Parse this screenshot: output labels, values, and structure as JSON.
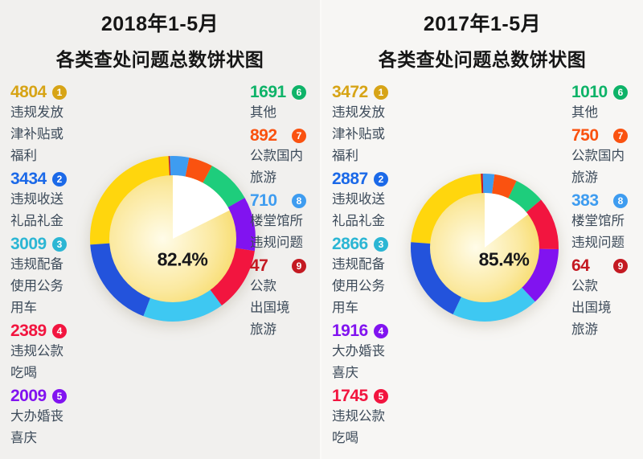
{
  "colors": {
    "panel_left_bg": "#f1f0ee",
    "panel_right_bg": "#f7f6f4",
    "title_text": "#161616",
    "legend_label_text": "#3c4a59",
    "center_label_text": "#17171a",
    "wedge": "#ffffff",
    "pie_gradient": {
      "center": "#fffce9",
      "mid": "#fbe9a0",
      "edge": "#f5d44e"
    }
  },
  "chart_data": [
    {
      "type": "donut",
      "title_line1": "2018年1-5月",
      "title_line2": "各类查处问题总数饼状图",
      "center_label": "82.4%",
      "direction": "counterclockwise-from-top",
      "legend_position": "flanking-left-and-right",
      "entries": [
        {
          "rank": 1,
          "value": 4804,
          "label": "违规发放津补贴或福利",
          "label_lines": [
            "违规发放",
            "津补贴或",
            "福利"
          ],
          "slice_color": "#ffd60d",
          "text_color": "#d7a416"
        },
        {
          "rank": 2,
          "value": 3434,
          "label": "违规收送礼品礼金",
          "label_lines": [
            "违规收送",
            "礼品礼金"
          ],
          "slice_color": "#2353dc",
          "text_color": "#1b69e8"
        },
        {
          "rank": 3,
          "value": 3009,
          "label": "违规配备使用公务用车",
          "label_lines": [
            "违规配备",
            "使用公务",
            "用车"
          ],
          "slice_color": "#3ec8f2",
          "text_color": "#2cb6d4"
        },
        {
          "rank": 4,
          "value": 2389,
          "label": "违规公款吃喝",
          "label_lines": [
            "违规公款",
            "吃喝"
          ],
          "slice_color": "#f2153f",
          "text_color": "#f2153f"
        },
        {
          "rank": 5,
          "value": 2009,
          "label": "大办婚丧喜庆",
          "label_lines": [
            "大办婚丧",
            "喜庆"
          ],
          "slice_color": "#8113f0",
          "text_color": "#8113f0"
        },
        {
          "rank": 6,
          "value": 1691,
          "label": "其他",
          "label_lines": [
            "其他"
          ],
          "slice_color": "#1ecd7c",
          "text_color": "#0eb368"
        },
        {
          "rank": 7,
          "value": 892,
          "label": "公款国内旅游",
          "label_lines": [
            "公款国内",
            "旅游"
          ],
          "slice_color": "#fa5210",
          "text_color": "#fa5210"
        },
        {
          "rank": 8,
          "value": 710,
          "label": "楼堂馆所违规问题",
          "label_lines": [
            "楼堂馆所",
            "违规问题"
          ],
          "slice_color": "#3e9cf0",
          "text_color": "#3e9cf0"
        },
        {
          "rank": 9,
          "value": 47,
          "label": "公款出国境旅游",
          "label_lines": [
            "公款",
            "出国境",
            "旅游"
          ],
          "slice_color": "#c41a22",
          "text_color": "#c41a22"
        }
      ]
    },
    {
      "type": "donut",
      "title_line1": "2017年1-5月",
      "title_line2": "各类查处问题总数饼状图",
      "center_label": "85.4%",
      "direction": "counterclockwise-from-top",
      "legend_position": "flanking-left-and-right",
      "entries": [
        {
          "rank": 1,
          "value": 3472,
          "label": "违规发放津补贴或福利",
          "label_lines": [
            "违规发放",
            "津补贴或",
            "福利"
          ],
          "slice_color": "#ffd60d",
          "text_color": "#d7a416"
        },
        {
          "rank": 2,
          "value": 2887,
          "label": "违规收送礼品礼金",
          "label_lines": [
            "违规收送",
            "礼品礼金"
          ],
          "slice_color": "#2353dc",
          "text_color": "#1b69e8"
        },
        {
          "rank": 3,
          "value": 2866,
          "label": "违规配备使用公务用车",
          "label_lines": [
            "违规配备",
            "使用公务",
            "用车"
          ],
          "slice_color": "#3ec8f2",
          "text_color": "#2cb6d4"
        },
        {
          "rank": 4,
          "value": 1916,
          "label": "大办婚丧喜庆",
          "label_lines": [
            "大办婚丧",
            "喜庆"
          ],
          "slice_color": "#8113f0",
          "text_color": "#8113f0"
        },
        {
          "rank": 5,
          "value": 1745,
          "label": "违规公款吃喝",
          "label_lines": [
            "违规公款",
            "吃喝"
          ],
          "slice_color": "#f2153f",
          "text_color": "#f2153f"
        },
        {
          "rank": 6,
          "value": 1010,
          "label": "其他",
          "label_lines": [
            "其他"
          ],
          "slice_color": "#1ecd7c",
          "text_color": "#0eb368"
        },
        {
          "rank": 7,
          "value": 750,
          "label": "公款国内旅游",
          "label_lines": [
            "公款国内",
            "旅游"
          ],
          "slice_color": "#fa5210",
          "text_color": "#fa5210"
        },
        {
          "rank": 8,
          "value": 383,
          "label": "楼堂馆所违规问题",
          "label_lines": [
            "楼堂馆所",
            "违规问题"
          ],
          "slice_color": "#3e9cf0",
          "text_color": "#3e9cf0"
        },
        {
          "rank": 9,
          "value": 64,
          "label": "公款出国境旅游",
          "label_lines": [
            "公款",
            "出国境",
            "旅游"
          ],
          "slice_color": "#c41a22",
          "text_color": "#c41a22"
        }
      ]
    }
  ]
}
